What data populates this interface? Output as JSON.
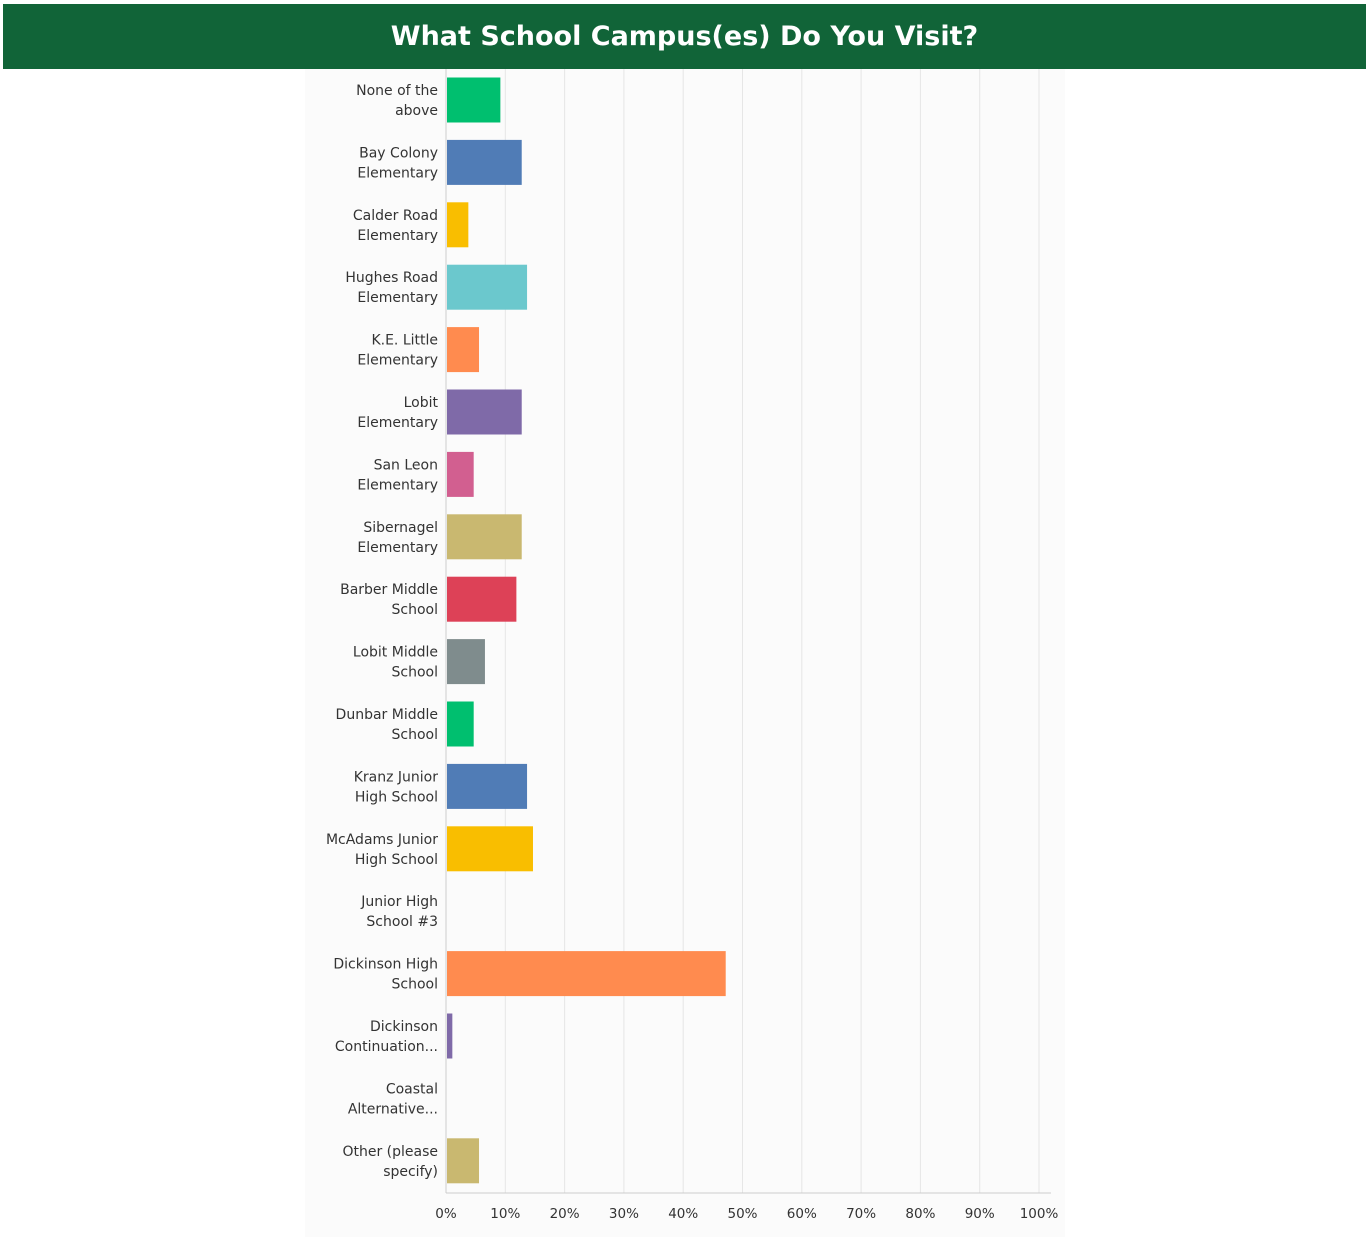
{
  "title": "What School Campus(es) Do You Visit?",
  "colors": {
    "header_bg": "#116438",
    "header_text": "#ffffff",
    "gridline": "#e6e6e6",
    "axis": "#cccccc",
    "text": "#333333"
  },
  "chart_data": {
    "type": "bar",
    "orientation": "horizontal",
    "title": "What School Campus(es) Do You Visit?",
    "xlabel": "",
    "ylabel": "",
    "xlim": [
      0,
      100
    ],
    "x_ticks": [
      0,
      10,
      20,
      30,
      40,
      50,
      60,
      70,
      80,
      90,
      100
    ],
    "x_tick_labels": [
      "0%",
      "10%",
      "20%",
      "30%",
      "40%",
      "50%",
      "60%",
      "70%",
      "80%",
      "90%",
      "100%"
    ],
    "grid": true,
    "legend": "none",
    "categories": [
      [
        "None of the",
        "above"
      ],
      [
        "Bay Colony",
        "Elementary"
      ],
      [
        "Calder Road",
        "Elementary"
      ],
      [
        "Hughes Road",
        "Elementary"
      ],
      [
        "K.E. Little",
        "Elementary"
      ],
      [
        "Lobit",
        "Elementary"
      ],
      [
        "San Leon",
        "Elementary"
      ],
      [
        "Sibernagel",
        "Elementary"
      ],
      [
        "Barber Middle",
        "School"
      ],
      [
        "Lobit Middle",
        "School"
      ],
      [
        "Dunbar Middle",
        "School"
      ],
      [
        "Kranz Junior",
        "High School"
      ],
      [
        "McAdams Junior",
        "High School"
      ],
      [
        "Junior High",
        "School #3"
      ],
      [
        "Dickinson High",
        "School"
      ],
      [
        "Dickinson",
        "Continuation..."
      ],
      [
        "Coastal",
        "Alternative..."
      ],
      [
        "Other (please",
        "specify)"
      ]
    ],
    "values": [
      9.0,
      12.6,
      3.6,
      13.5,
      5.4,
      12.6,
      4.5,
      12.6,
      11.7,
      6.4,
      4.5,
      13.5,
      14.5,
      0.0,
      47.0,
      0.9,
      0.0,
      5.4
    ],
    "bar_colors": [
      "#00bf6f",
      "#507cb6",
      "#f9be00",
      "#6bc8cd",
      "#ff8b4f",
      "#7f6aa8",
      "#d25f90",
      "#c9b870",
      "#dd4157",
      "#7f8c8d",
      "#00bf6f",
      "#507cb6",
      "#f9be00",
      "#6bc8cd",
      "#ff8b4f",
      "#7f6aa8",
      "#d25f90",
      "#c9b870"
    ]
  }
}
